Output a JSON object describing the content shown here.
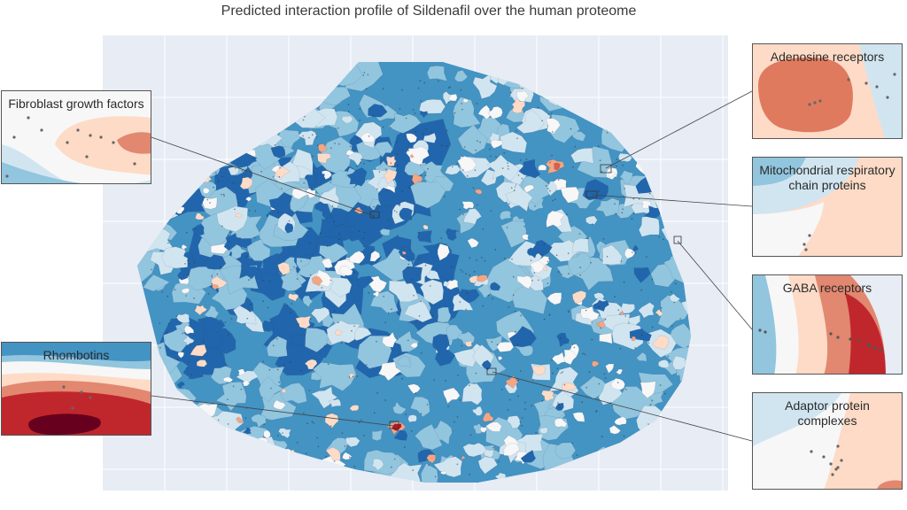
{
  "title": "Predicted interaction profile of Sildenafil over the human proteome",
  "chart_data": {
    "type": "contour",
    "title": "Predicted interaction profile of Sildenafil over the human proteome",
    "xlabel": "",
    "ylabel": "",
    "grid": true,
    "legend": "none",
    "colormap": [
      "#2166ac",
      "#4393c3",
      "#92c5de",
      "#d1e5f0",
      "#f7f7f7",
      "#fddbc7",
      "#f4a582",
      "#d6604d",
      "#b2182b",
      "#67001f"
    ],
    "insets": [
      {
        "label": "Fibroblast growth factors",
        "side": "left"
      },
      {
        "label": "Rhombotins",
        "side": "left"
      },
      {
        "label": "Adenosine receptors",
        "side": "right"
      },
      {
        "label": "Mitochondrial respiratory chain proteins",
        "side": "right"
      },
      {
        "label": "GABA receptors",
        "side": "right"
      },
      {
        "label": "Adaptor protein complexes",
        "side": "right"
      }
    ]
  },
  "colors": {
    "plot_background": "#e7ecf5",
    "grid": "#ffffff",
    "connector": "#444444"
  }
}
